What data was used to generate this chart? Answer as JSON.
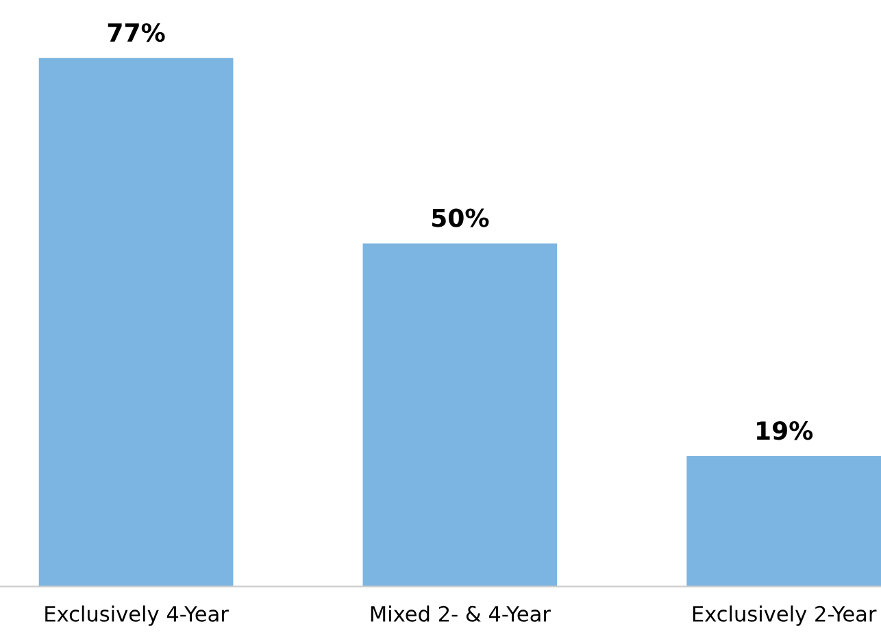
{
  "chart_data": {
    "type": "bar",
    "categories": [
      "Exclusively 4-Year",
      "Mixed 2- & 4-Year",
      "Exclusively 2-Year"
    ],
    "values": [
      77,
      50,
      19
    ],
    "value_labels": [
      "77%",
      "50%",
      "19%"
    ],
    "color": "#7cb5e1",
    "grid": false,
    "legend": false
  }
}
